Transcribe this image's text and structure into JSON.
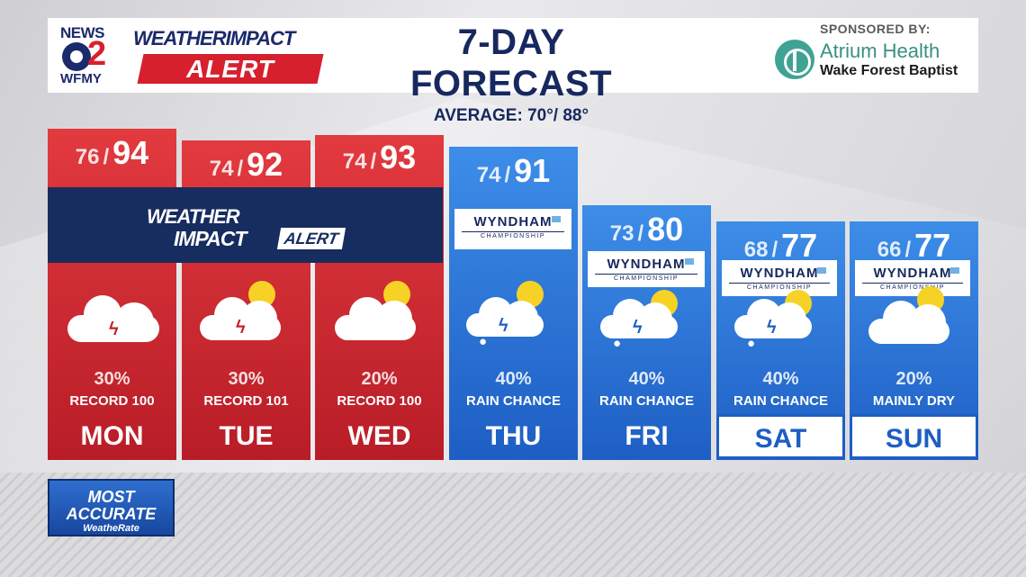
{
  "header": {
    "station_news": "NEWS",
    "station_number": "2",
    "station_call": "WFMY",
    "logo_weather": "WEATHER",
    "logo_impact": "IMPACT",
    "logo_alert": "ALERT",
    "title": "7-DAY FORECAST",
    "average": "AVERAGE: 70°/ 88°",
    "sponsor_by": "SPONSORED BY:",
    "sponsor_name": "Atrium Health",
    "sponsor_sub": "Wake Forest Baptist"
  },
  "banner": {
    "line1": "WEATHER",
    "line2": "IMPACT",
    "line3": "ALERT"
  },
  "wyndham": {
    "name": "WYNDHAM",
    "sub": "CHAMPIONSHIP"
  },
  "days": [
    {
      "name": "MON",
      "low": "76",
      "high": "94",
      "pct": "30%",
      "note": "RECORD 100",
      "icon": "thunderstorm-icon"
    },
    {
      "name": "TUE",
      "low": "74",
      "high": "92",
      "pct": "30%",
      "note": "RECORD 101",
      "icon": "partly-sunny-thunderstorm-icon"
    },
    {
      "name": "WED",
      "low": "74",
      "high": "93",
      "pct": "20%",
      "note": "RECORD 100",
      "icon": "partly-cloudy-icon"
    },
    {
      "name": "THU",
      "low": "74",
      "high": "91",
      "pct": "40%",
      "note": "RAIN CHANCE",
      "icon": "partly-sunny-thunderstorm-rain-icon"
    },
    {
      "name": "FRI",
      "low": "73",
      "high": "80",
      "pct": "40%",
      "note": "RAIN CHANCE",
      "icon": "partly-sunny-thunderstorm-rain-icon"
    },
    {
      "name": "SAT",
      "low": "68",
      "high": "77",
      "pct": "40%",
      "note": "RAIN CHANCE",
      "icon": "partly-sunny-thunderstorm-rain-icon"
    },
    {
      "name": "SUN",
      "low": "66",
      "high": "77",
      "pct": "20%",
      "note": "MAINLY DRY",
      "icon": "partly-cloudy-icon"
    }
  ],
  "badge": {
    "line1": "MOST",
    "line2": "ACCURATE",
    "line3": "WeatheRate"
  },
  "colors": {
    "alert_red": "#d7202e",
    "forecast_blue": "#1e5ec4",
    "navy": "#17285e",
    "sun_yellow": "#f7d226"
  }
}
